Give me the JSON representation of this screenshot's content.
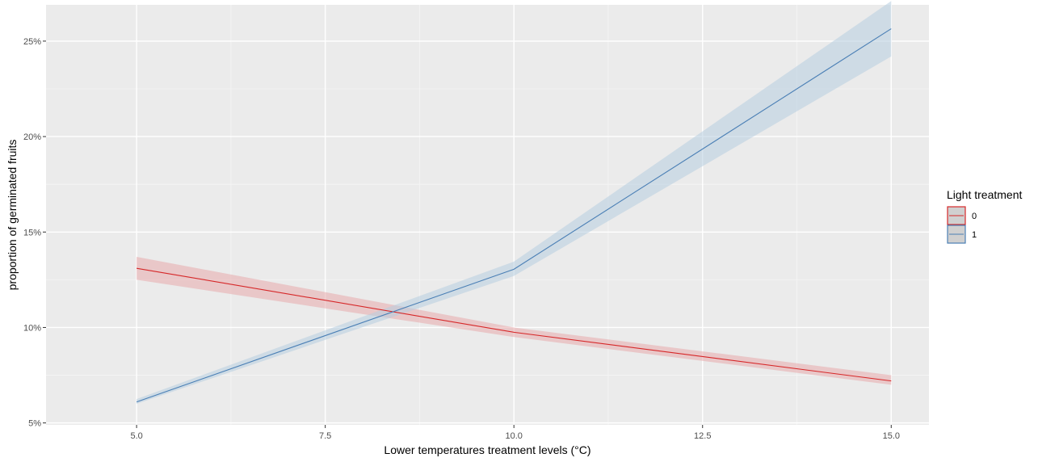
{
  "chart_data": {
    "type": "line",
    "xlabel": "Lower temperatures treatment levels (°C)",
    "ylabel": "proportion of germinated fruits",
    "xlim": [
      3.8,
      15.5
    ],
    "ylim": [
      4.9,
      26.9
    ],
    "x_ticks": [
      5.0,
      7.5,
      10.0,
      12.5,
      15.0
    ],
    "x_tick_labels": [
      "5.0",
      "7.5",
      "10.0",
      "12.5",
      "15.0"
    ],
    "y_ticks": [
      5,
      10,
      15,
      20,
      25
    ],
    "y_tick_labels": [
      "5%",
      "10%",
      "15%",
      "20%",
      "25%"
    ],
    "grid": true,
    "legend": {
      "title": "Light treatment",
      "position": "right"
    },
    "series": [
      {
        "name": "0",
        "color": "#d62728",
        "fill": "#e8a9ab",
        "x": [
          5,
          10,
          15
        ],
        "y": [
          13.1,
          9.75,
          7.2
        ],
        "lower": [
          12.5,
          9.5,
          7.0
        ],
        "upper": [
          13.7,
          10.0,
          7.5
        ]
      },
      {
        "name": "1",
        "color": "#4a7fb5",
        "fill": "#b7cde0",
        "x": [
          5,
          10,
          15
        ],
        "y": [
          6.1,
          13.05,
          25.65
        ],
        "lower": [
          6.0,
          12.7,
          24.2
        ],
        "upper": [
          6.25,
          13.45,
          27.1
        ]
      }
    ]
  }
}
